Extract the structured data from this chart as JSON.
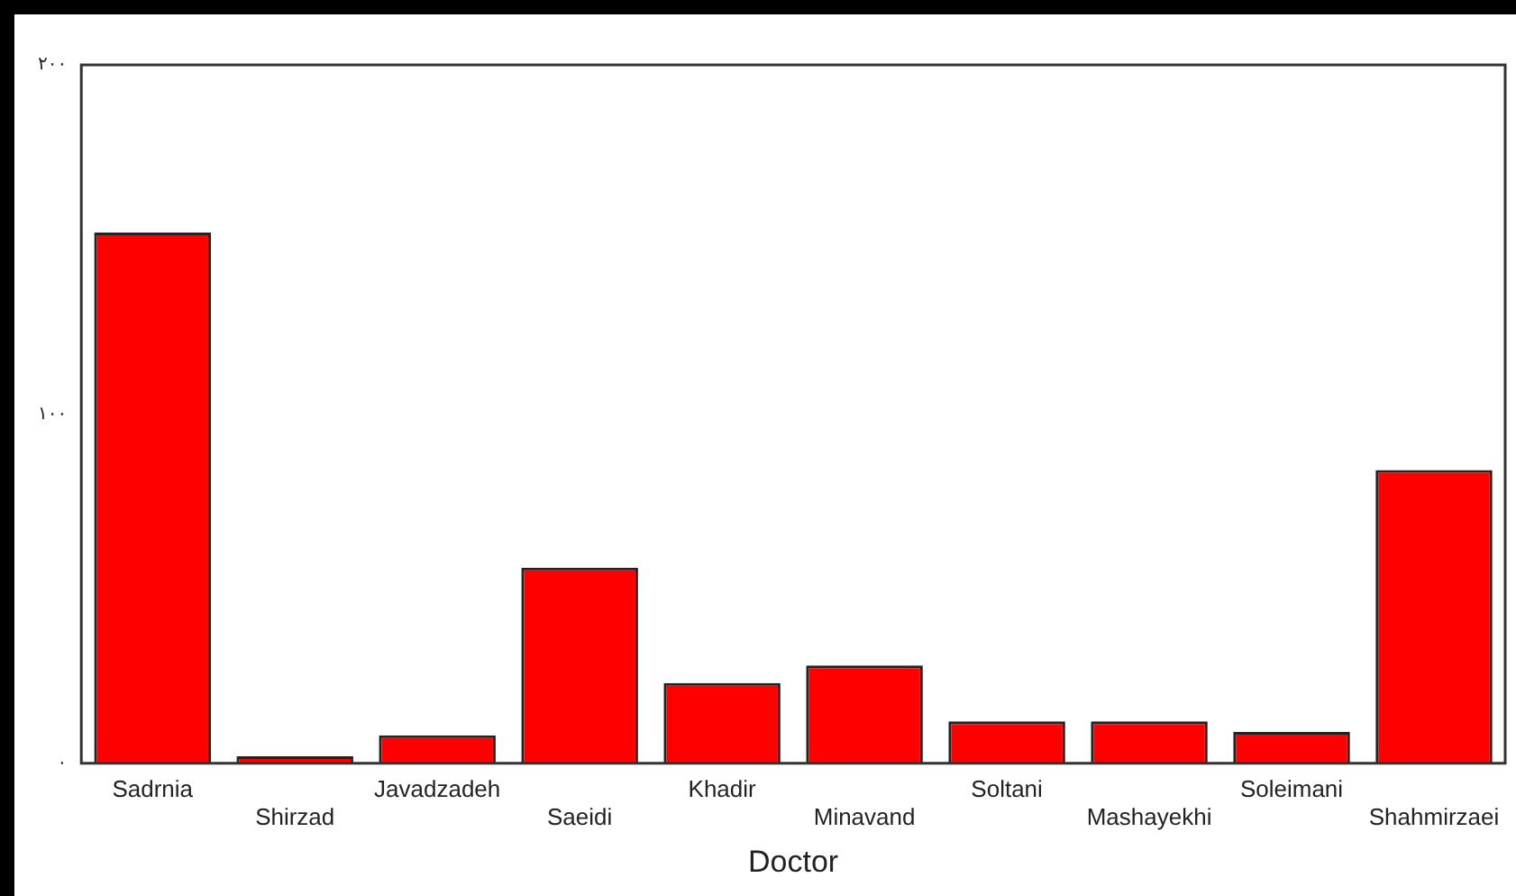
{
  "chart_data": {
    "type": "bar",
    "xlabel": "Doctor",
    "categories": [
      "Sadrnia",
      "Shirzad",
      "Javadzadeh",
      "Saeidi",
      "Khadir",
      "Minavand",
      "Soltani",
      "Mashayekhi",
      "Soleimani",
      "Shahmirzaei"
    ],
    "values": [
      152,
      2,
      8,
      56,
      23,
      28,
      12,
      12,
      9,
      84
    ],
    "color": "#ff0000",
    "ylim": [
      0,
      200
    ],
    "yticks": [
      {
        "value": 0,
        "label": "۰"
      },
      {
        "value": 100,
        "label": "۱۰۰"
      },
      {
        "value": 200,
        "label": "۲۰۰"
      }
    ],
    "grid": false,
    "legend": false
  }
}
